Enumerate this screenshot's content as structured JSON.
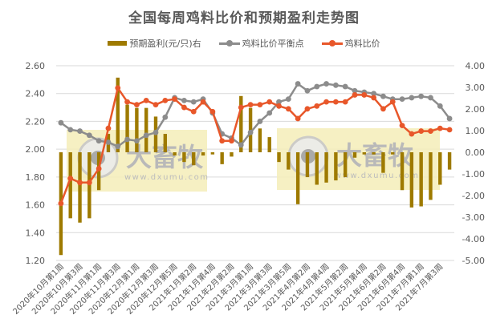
{
  "chart_data": {
    "type": "bar+line",
    "title": "全国每周鸡料比价和预期盈利走势图",
    "legend_position": "top",
    "grid": true,
    "colors": {
      "profit_bar": "#9E7A00",
      "breakeven_line": "#8C8C8C",
      "ratio_line": "#E8572A",
      "watermark_fill": "#F5EDB8"
    },
    "left_axis": {
      "min": 1.2,
      "max": 2.6,
      "step": 0.2,
      "ticks": [
        "2.60",
        "2.40",
        "2.20",
        "2.00",
        "1.80",
        "1.60",
        "1.40",
        "1.20"
      ]
    },
    "right_axis": {
      "min": -5,
      "max": 4,
      "step": 1,
      "ticks": [
        "4.00",
        "3.00",
        "2.00",
        "1.00",
        "0.00",
        "-1.00",
        "-2.00",
        "-3.00",
        "-4.00",
        "-5.00"
      ]
    },
    "x_tick_labels": [
      "2020年10月第1周",
      "2020年10月第3周",
      "2020年11月第1周",
      "2020年11月第3周",
      "2020年12月第1周",
      "2020年12月第3周",
      "2020年12月第5周",
      "2021年1月第2周",
      "2021年1月第4周",
      "2021年2月第2周",
      "2021年3月第1周",
      "2021年3月第3周",
      "2021年3月第5周",
      "2021年4月第2周",
      "2021年4月第4周",
      "2021年5月第2周",
      "2021年5月第4周",
      "2021年6月第2周",
      "2021年6月第4周",
      "2021年7月第1周",
      "2021年7月第3周"
    ],
    "x_tick_every": 2,
    "point_count": 42,
    "series": [
      {
        "name": "预期盈利(元/只)右",
        "type": "bar",
        "axis": "right",
        "values": [
          -4.75,
          -3.05,
          -3.25,
          -3.05,
          -1.75,
          0.85,
          3.45,
          2.2,
          2.05,
          2.05,
          1.65,
          0.85,
          -0.15,
          -0.45,
          -0.6,
          -0.15,
          -0.1,
          -0.55,
          -0.2,
          2.6,
          2.05,
          1.1,
          0.7,
          -0.45,
          -0.8,
          -2.4,
          -1.15,
          -1.5,
          -1.4,
          -1.3,
          -1.15,
          -0.25,
          -0.1,
          -0.1,
          -0.95,
          -0.1,
          -1.75,
          -2.55,
          -2.5,
          -2.2,
          -1.5,
          -0.8
        ]
      },
      {
        "name": "鸡料比价平衡点",
        "type": "line",
        "axis": "left",
        "values": [
          2.19,
          2.14,
          2.13,
          2.1,
          2.06,
          2.05,
          2.02,
          2.07,
          2.06,
          2.1,
          2.12,
          2.23,
          2.37,
          2.35,
          2.34,
          2.36,
          2.26,
          2.11,
          2.08,
          2.03,
          2.12,
          2.2,
          2.26,
          2.34,
          2.36,
          2.47,
          2.42,
          2.45,
          2.47,
          2.46,
          2.45,
          2.42,
          2.41,
          2.4,
          2.38,
          2.36,
          2.36,
          2.37,
          2.38,
          2.37,
          2.31,
          2.22
        ]
      },
      {
        "name": "鸡料比价",
        "type": "line",
        "axis": "left",
        "values": [
          1.61,
          1.79,
          1.76,
          1.76,
          1.86,
          2.15,
          2.44,
          2.34,
          2.32,
          2.35,
          2.32,
          2.35,
          2.36,
          2.3,
          2.27,
          2.34,
          2.27,
          2.06,
          2.06,
          2.3,
          2.32,
          2.32,
          2.34,
          2.31,
          2.29,
          2.22,
          2.29,
          2.31,
          2.34,
          2.34,
          2.34,
          2.39,
          2.39,
          2.37,
          2.29,
          2.34,
          2.17,
          2.11,
          2.13,
          2.13,
          2.15,
          2.14
        ]
      }
    ],
    "xlabel": "",
    "ylabel": "",
    "ylim": [
      1.2,
      2.6
    ],
    "y2lim": [
      -5,
      4
    ]
  },
  "legend": {
    "items": [
      {
        "label": "预期盈利(元/只)右"
      },
      {
        "label": "鸡料比价平衡点"
      },
      {
        "label": "鸡料比价"
      }
    ]
  },
  "watermark": {
    "brand": "大畜牧",
    "url": "www.dxumu.com"
  }
}
